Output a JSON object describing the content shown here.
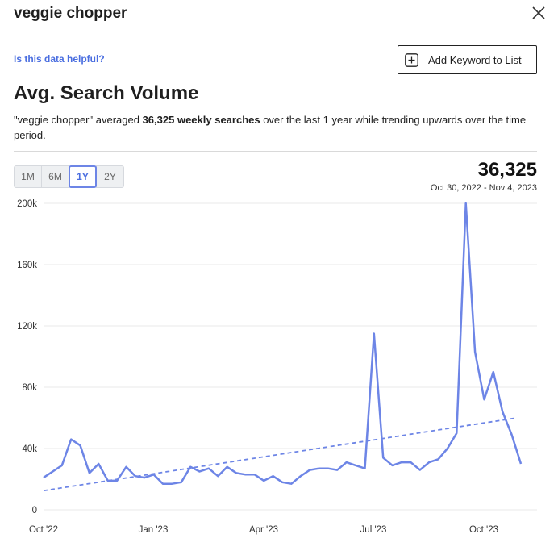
{
  "header": {
    "title": "veggie chopper",
    "close_icon": "close-icon"
  },
  "helpful_link": "Is this data helpful?",
  "add_button": {
    "label": "Add Keyword to List",
    "icon": "plus-square-icon"
  },
  "section_title": "Avg. Search Volume",
  "summary": {
    "keyword": "\"veggie chopper\"",
    "prefix": " averaged ",
    "value": "36,325",
    "bold_suffix": " weekly searches",
    "rest": " over the last 1 year while trending upwards over the time period."
  },
  "ranges": [
    "1M",
    "6M",
    "1Y",
    "2Y"
  ],
  "active_range": "1Y",
  "stat": {
    "value": "36,325",
    "date_range": "Oct 30, 2022 - Nov 4, 2023"
  },
  "colors": {
    "line": "#6d85e6",
    "trend": "#6d85e6",
    "grid": "#e8e8e8",
    "link": "#4a6ee0"
  },
  "chart_data": {
    "type": "line",
    "y_ticks": [
      "0",
      "40k",
      "80k",
      "120k",
      "160k",
      "200k"
    ],
    "x_ticks": [
      "Oct '22",
      "Jan '23",
      "Apr '23",
      "Jul '23",
      "Oct '23"
    ],
    "ylim": [
      0,
      200000
    ],
    "grid": true,
    "series": [
      {
        "values": [
          21000,
          25000,
          29000,
          46000,
          42000,
          24000,
          30000,
          19000,
          19000,
          28000,
          22000,
          21000,
          23000,
          17000,
          17000,
          18000,
          28000,
          25000,
          27000,
          22000,
          28000,
          24000,
          23000,
          23000,
          19000,
          22000,
          18000,
          17000,
          22000,
          26000,
          27000,
          27000,
          26000,
          31000,
          29000,
          27000,
          115000,
          34000,
          29000,
          31000,
          31000,
          26000,
          31000,
          33000,
          40000,
          50000,
          200000,
          103000,
          72000,
          90000,
          64000,
          49000,
          30000
        ]
      },
      {
        "trend_start": 12500,
        "trend_end": 60000
      }
    ]
  }
}
